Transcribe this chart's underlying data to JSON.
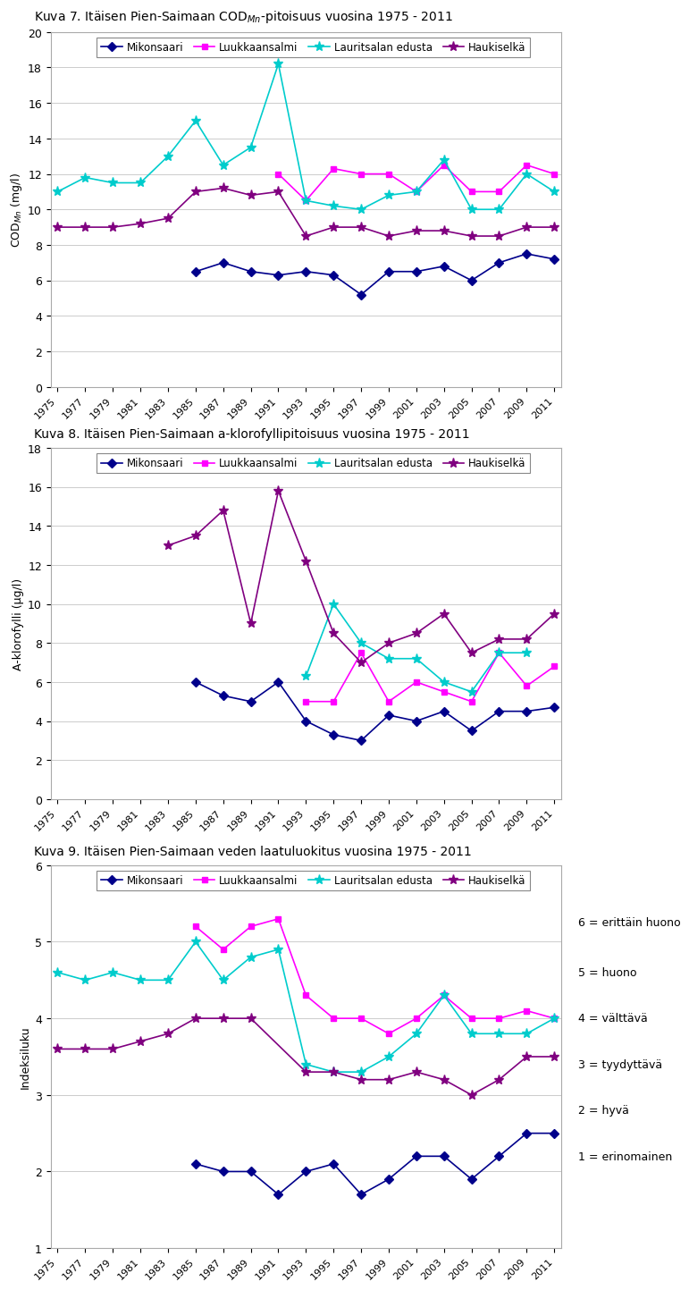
{
  "title1": "Kuva 7. Itäisen Pien-Saimaan CODₘₙ-pitoisuus vuosina 1975 - 2011",
  "title2": "Kuva 8. Itäisen Pien-Saimaan a-klorofyllipitoisuus vuosina 1975 - 2011",
  "title3": "Kuva 9. Itäisen Pien-Saimaan veden laatuluokitus vuosina 1975 - 2011",
  "legend_labels": [
    "Mikonsaari",
    "Luukkaansalmi",
    "Lauritsalan edusta",
    "Haukiselkä"
  ],
  "colors": [
    "#00008B",
    "#FF00FF",
    "#00CCCC",
    "#800080"
  ],
  "markers": [
    "D",
    "s",
    "*",
    "*"
  ],
  "years_all": [
    1975,
    1977,
    1979,
    1981,
    1983,
    1985,
    1987,
    1989,
    1991,
    1993,
    1995,
    1997,
    1999,
    2001,
    2003,
    2005,
    2007,
    2009,
    2011
  ],
  "mikonsaari1": [
    null,
    null,
    null,
    null,
    null,
    6.5,
    7.0,
    6.5,
    6.3,
    6.5,
    6.3,
    5.2,
    6.5,
    6.5,
    6.8,
    6.0,
    7.0,
    7.5,
    7.2
  ],
  "luukkaansalmi1": [
    null,
    null,
    null,
    null,
    null,
    null,
    null,
    null,
    12.0,
    10.5,
    12.3,
    12.0,
    12.0,
    11.0,
    12.5,
    11.0,
    11.0,
    12.5,
    12.0
  ],
  "lauritsala1": [
    11.0,
    11.8,
    11.5,
    11.5,
    13.0,
    15.0,
    12.5,
    13.5,
    18.2,
    10.5,
    10.2,
    10.0,
    10.8,
    11.0,
    12.8,
    10.0,
    10.0,
    12.0,
    11.0
  ],
  "haukiselka1": [
    9.0,
    9.0,
    9.0,
    9.2,
    9.5,
    11.0,
    11.2,
    10.8,
    11.0,
    8.5,
    9.0,
    9.0,
    8.5,
    8.8,
    8.8,
    8.5,
    8.5,
    9.0,
    9.0
  ],
  "mikonsaari2": [
    null,
    null,
    null,
    null,
    null,
    6.0,
    5.3,
    5.0,
    6.0,
    4.0,
    3.3,
    3.0,
    4.3,
    4.0,
    4.5,
    3.5,
    4.5,
    4.5,
    4.7
  ],
  "luukkaansalmi2": [
    null,
    null,
    null,
    null,
    null,
    null,
    null,
    null,
    null,
    5.0,
    5.0,
    7.5,
    5.0,
    6.0,
    5.5,
    5.0,
    7.5,
    5.8,
    6.8
  ],
  "lauritsala2": [
    null,
    null,
    null,
    null,
    null,
    null,
    null,
    null,
    null,
    6.3,
    10.0,
    8.0,
    7.2,
    7.2,
    6.0,
    5.5,
    7.5,
    7.5,
    null
  ],
  "haukiselka2": [
    null,
    null,
    null,
    null,
    13.0,
    13.5,
    14.8,
    9.0,
    15.8,
    12.2,
    8.5,
    7.0,
    8.0,
    8.5,
    9.5,
    7.5,
    8.2,
    8.2,
    9.5
  ],
  "mikonsaari3": [
    null,
    null,
    null,
    null,
    null,
    2.1,
    2.0,
    2.0,
    1.7,
    2.0,
    2.1,
    1.7,
    1.9,
    2.2,
    2.2,
    1.9,
    2.2,
    2.5,
    2.5
  ],
  "luukkaansalmi3": [
    null,
    null,
    null,
    null,
    null,
    5.2,
    4.9,
    5.2,
    5.3,
    4.3,
    4.0,
    4.0,
    3.8,
    4.0,
    4.3,
    4.0,
    4.0,
    4.1,
    4.0
  ],
  "lauritsala3": [
    4.6,
    4.5,
    4.6,
    4.5,
    4.5,
    5.0,
    4.5,
    4.8,
    4.9,
    3.4,
    3.3,
    3.3,
    3.5,
    3.8,
    4.3,
    3.8,
    3.8,
    3.8,
    4.0
  ],
  "haukiselka3": [
    3.6,
    3.6,
    3.6,
    3.7,
    3.8,
    4.0,
    4.0,
    4.0,
    null,
    3.3,
    3.3,
    3.2,
    3.2,
    3.3,
    3.2,
    3.0,
    3.2,
    3.5,
    3.5
  ],
  "quality_labels": [
    "6 = erittäin huono",
    "5 = huono",
    "4 = välttävä",
    "3 = tyydyttävä",
    "2 = hyvä",
    "1 = erinomainen"
  ]
}
